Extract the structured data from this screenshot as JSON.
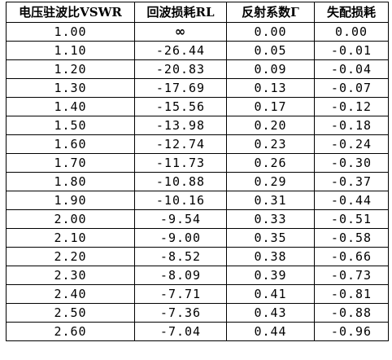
{
  "table": {
    "headers": [
      "电压驻波比VSWR",
      "回波损耗RL",
      "反射系数Γ",
      "失配损耗"
    ],
    "rows": [
      [
        "1.00",
        "∞",
        "0.00",
        "0.00"
      ],
      [
        "1.10",
        "-26.44",
        "0.05",
        "-0.01"
      ],
      [
        "1.20",
        "-20.83",
        "0.09",
        "-0.04"
      ],
      [
        "1.30",
        "-17.69",
        "0.13",
        "-0.07"
      ],
      [
        "1.40",
        "-15.56",
        "0.17",
        "-0.12"
      ],
      [
        "1.50",
        "-13.98",
        "0.20",
        "-0.18"
      ],
      [
        "1.60",
        "-12.74",
        "0.23",
        "-0.24"
      ],
      [
        "1.70",
        "-11.73",
        "0.26",
        "-0.30"
      ],
      [
        "1.80",
        "-10.88",
        "0.29",
        "-0.37"
      ],
      [
        "1.90",
        "-10.16",
        "0.31",
        "-0.44"
      ],
      [
        "2.00",
        "-9.54",
        "0.33",
        "-0.51"
      ],
      [
        "2.10",
        "-9.00",
        "0.35",
        "-0.58"
      ],
      [
        "2.20",
        "-8.52",
        "0.38",
        "-0.66"
      ],
      [
        "2.30",
        "-8.09",
        "0.39",
        "-0.73"
      ],
      [
        "2.40",
        "-7.71",
        "0.41",
        "-0.81"
      ],
      [
        "2.50",
        "-7.36",
        "0.43",
        "-0.88"
      ],
      [
        "2.60",
        "-7.04",
        "0.44",
        "-0.96"
      ]
    ]
  }
}
